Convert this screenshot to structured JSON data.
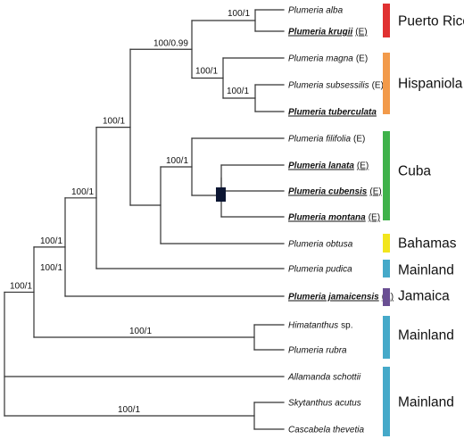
{
  "taxa": [
    {
      "id": "alba",
      "name": "Plumeria alba",
      "tag": "",
      "highlight": false
    },
    {
      "id": "krugii",
      "name": "Plumeria krugii",
      "tag": "(E)",
      "highlight": true
    },
    {
      "id": "magna",
      "name": "Plumeria magna",
      "tag": "(E)",
      "highlight": false
    },
    {
      "id": "subsessilis",
      "name": "Plumeria subsessilis",
      "tag": "(E)",
      "highlight": false
    },
    {
      "id": "tuberculata",
      "name": "Plumeria tuberculata",
      "tag": "",
      "highlight": true
    },
    {
      "id": "filifolia",
      "name": "Plumeria filifolia",
      "tag": "(E)",
      "highlight": false
    },
    {
      "id": "lanata",
      "name": "Plumeria lanata",
      "tag": "(E)",
      "highlight": true
    },
    {
      "id": "cubensis",
      "name": "Plumeria cubensis",
      "tag": "(E)",
      "highlight": true
    },
    {
      "id": "montana",
      "name": "Plumeria montana",
      "tag": "(E)",
      "highlight": true
    },
    {
      "id": "obtusa",
      "name": "Plumeria obtusa",
      "tag": "",
      "highlight": false
    },
    {
      "id": "pudica",
      "name": "Plumeria pudica",
      "tag": "",
      "highlight": false
    },
    {
      "id": "jamaicensis",
      "name": "Plumeria jamaicensis",
      "tag": "(E)",
      "highlight": true
    },
    {
      "id": "himatanthus",
      "name": "Himatanthus",
      "tag": "sp.",
      "highlight": false
    },
    {
      "id": "rubra",
      "name": "Plumeria rubra",
      "tag": "",
      "highlight": false
    },
    {
      "id": "allamanda",
      "name": "Allamanda schottii",
      "tag": "",
      "highlight": false
    },
    {
      "id": "skytanthus",
      "name": "Skytanthus acutus",
      "tag": "",
      "highlight": false
    },
    {
      "id": "cascabela",
      "name": "Cascabela thevetia",
      "tag": "",
      "highlight": false
    }
  ],
  "support_labels": [
    {
      "id": "n-alba-krugii",
      "value": "100/1"
    },
    {
      "id": "n-antilles",
      "value": "100/0.99"
    },
    {
      "id": "n-hispaniola",
      "value": "100/1"
    },
    {
      "id": "n-subs-tub",
      "value": "100/1"
    },
    {
      "id": "n-cuba",
      "value": "100/1"
    },
    {
      "id": "n-islands",
      "value": "100/1"
    },
    {
      "id": "n-with-pudica",
      "value": "100/1"
    },
    {
      "id": "n-with-jamaicensis",
      "value": "100/1"
    },
    {
      "id": "n-plumeria",
      "value": "100/1"
    },
    {
      "id": "n-him-rubra",
      "value": "100/1"
    },
    {
      "id": "n-outgroup",
      "value": "100/1"
    },
    {
      "id": "n-root",
      "value": "100/1"
    }
  ],
  "regions": [
    {
      "id": "puerto-rico",
      "label": "Puerto Rico",
      "color": "#e03131"
    },
    {
      "id": "hispaniola",
      "label": "Hispaniola",
      "color": "#f29a4a"
    },
    {
      "id": "cuba",
      "label": "Cuba",
      "color": "#3fb24a"
    },
    {
      "id": "bahamas",
      "label": "Bahamas",
      "color": "#f2e51d"
    },
    {
      "id": "mainland-1",
      "label": "Mainland",
      "color": "#45a9c9"
    },
    {
      "id": "jamaica",
      "label": "Jamaica",
      "color": "#6a4f93"
    },
    {
      "id": "mainland-2",
      "label": "Mainland",
      "color": "#45a9c9"
    },
    {
      "id": "mainland-3",
      "label": "Mainland",
      "color": "#45a9c9"
    }
  ],
  "marker": {
    "name": "unresolved-node-marker-icon",
    "color": "#0c1633"
  }
}
